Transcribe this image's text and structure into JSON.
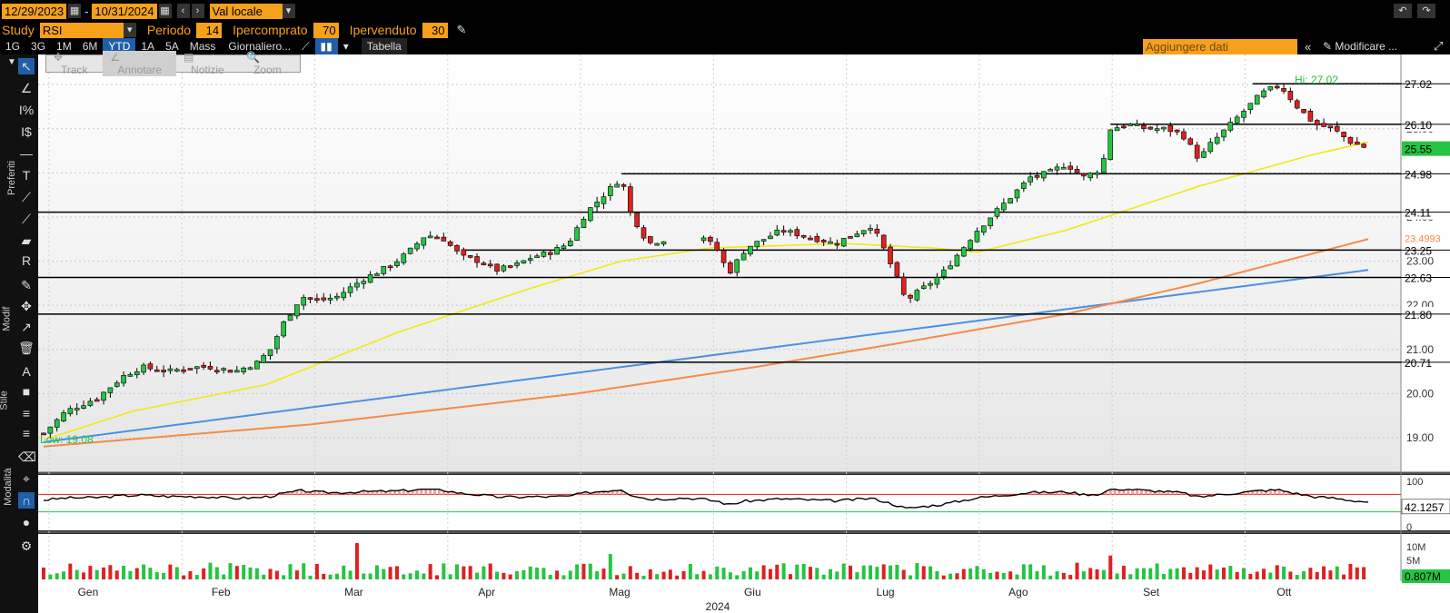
{
  "header": {
    "date_from": "12/29/2023",
    "date_sep": "-",
    "date_to": "10/31/2024",
    "currency": "Val locale",
    "study_label": "Study",
    "study_value": "RSI",
    "period_label": "Periodo",
    "period_value": "14",
    "overbought_label": "Ipercomprato",
    "overbought_value": "70",
    "oversold_label": "Ipervenduto",
    "oversold_value": "30"
  },
  "toolbar": {
    "timeframes": [
      "1G",
      "3G",
      "1M",
      "6M",
      "YTD",
      "1A",
      "5A",
      "Mass"
    ],
    "active_timeframe": "YTD",
    "frequency": "Giornaliero...",
    "table_label": "Tabella",
    "add_data_placeholder": "Aggiungere dati",
    "edit_label": "Modificare ..."
  },
  "drawtools": {
    "track": "Track",
    "annotate": "Annotare",
    "news": "Notizie",
    "zoom": "Zoom"
  },
  "sidebar": {
    "fav_label": "Preferiti",
    "edit_label": "Modif",
    "style_label": "Stile",
    "mode_label": "Modalità"
  },
  "colors": {
    "up": "#26c442",
    "down": "#e02020",
    "ma_short": "#f5e614",
    "ma_long": "#f58a4a",
    "trend": "#4a90e2",
    "accent": "#f7a11a",
    "rsi_line": "#000000",
    "rsi_over": "#e02020",
    "rsi_under": "#26c442"
  },
  "chart_data": {
    "type": "candlestick",
    "x_months": [
      "Gen",
      "Feb",
      "Mar",
      "Apr",
      "Mag",
      "Giu",
      "Lug",
      "Ago",
      "Set",
      "Ott"
    ],
    "year_label": "2024",
    "y_ticks": [
      19.0,
      20.0,
      21.0,
      22.0,
      23.0,
      24.0,
      25.0,
      26.0,
      27.0
    ],
    "hi_label": "Hi: 27.02",
    "low_label": "Low: 19.08",
    "hi": 27.02,
    "low": 19.08,
    "horizontal_levels": [
      "27.02",
      "26.10",
      "24.98",
      "24.11",
      "23.25",
      "22.63",
      "21.80",
      "20.71"
    ],
    "axis_badges": {
      "last_price": "25.55",
      "ma_long_value": "23.4993"
    },
    "close_path": [
      [
        0,
        19.1
      ],
      [
        5,
        19.6
      ],
      [
        12,
        19.9
      ],
      [
        18,
        20.4
      ],
      [
        22,
        20.6
      ],
      [
        28,
        20.5
      ],
      [
        33,
        20.6
      ],
      [
        38,
        20.6
      ],
      [
        43,
        20.5
      ],
      [
        48,
        20.7
      ],
      [
        51,
        21.0
      ],
      [
        54,
        21.6
      ],
      [
        58,
        22.2
      ],
      [
        62,
        22.1
      ],
      [
        66,
        22.2
      ],
      [
        72,
        22.6
      ],
      [
        78,
        22.9
      ],
      [
        82,
        23.2
      ],
      [
        86,
        23.6
      ],
      [
        90,
        23.5
      ],
      [
        94,
        23.1
      ],
      [
        98,
        23.0
      ],
      [
        102,
        22.8
      ],
      [
        106,
        22.9
      ],
      [
        110,
        23.1
      ],
      [
        114,
        23.2
      ],
      [
        118,
        23.4
      ],
      [
        122,
        24.1
      ],
      [
        126,
        24.5
      ],
      [
        130,
        24.9
      ],
      [
        132,
        24.1
      ],
      [
        136,
        23.4
      ],
      [
        140,
        23.5
      ],
      [
        144,
        23.7
      ],
      [
        148,
        23.6
      ],
      [
        152,
        23.2
      ],
      [
        154,
        22.7
      ],
      [
        158,
        23.3
      ],
      [
        162,
        23.5
      ],
      [
        166,
        23.7
      ],
      [
        170,
        23.6
      ],
      [
        174,
        23.5
      ],
      [
        178,
        23.4
      ],
      [
        182,
        23.6
      ],
      [
        186,
        23.8
      ],
      [
        188,
        23.5
      ],
      [
        192,
        22.6
      ],
      [
        194,
        22.1
      ],
      [
        198,
        22.4
      ],
      [
        202,
        22.7
      ],
      [
        206,
        23.2
      ],
      [
        210,
        23.7
      ],
      [
        214,
        24.1
      ],
      [
        218,
        24.5
      ],
      [
        222,
        24.9
      ],
      [
        226,
        25.0
      ],
      [
        230,
        25.2
      ],
      [
        234,
        24.9
      ],
      [
        238,
        25.1
      ],
      [
        240,
        26.0
      ],
      [
        244,
        26.1
      ],
      [
        248,
        26.0
      ],
      [
        252,
        26.0
      ],
      [
        256,
        25.9
      ],
      [
        260,
        25.3
      ],
      [
        262,
        25.6
      ],
      [
        266,
        26.0
      ],
      [
        270,
        26.4
      ],
      [
        274,
        26.8
      ],
      [
        278,
        27.0
      ],
      [
        282,
        26.5
      ],
      [
        286,
        26.1
      ],
      [
        290,
        26.0
      ],
      [
        294,
        25.7
      ],
      [
        298,
        25.55
      ]
    ],
    "ma_short_path": [
      [
        0,
        18.95
      ],
      [
        20,
        19.6
      ],
      [
        50,
        20.2
      ],
      [
        80,
        21.4
      ],
      [
        110,
        22.4
      ],
      [
        130,
        23.0
      ],
      [
        150,
        23.3
      ],
      [
        180,
        23.4
      ],
      [
        200,
        23.3
      ],
      [
        210,
        23.2
      ],
      [
        230,
        23.7
      ],
      [
        260,
        24.7
      ],
      [
        285,
        25.4
      ],
      [
        298,
        25.7
      ]
    ],
    "ma_long_path": [
      [
        0,
        18.8
      ],
      [
        60,
        19.3
      ],
      [
        120,
        20.0
      ],
      [
        160,
        20.6
      ],
      [
        190,
        21.1
      ],
      [
        230,
        21.8
      ],
      [
        260,
        22.5
      ],
      [
        298,
        23.5
      ]
    ],
    "trend_path": [
      [
        0,
        18.9
      ],
      [
        298,
        22.8
      ]
    ],
    "rsi_last": "42.1257",
    "rsi_ticks": [
      "100",
      "0"
    ],
    "volume_last": "0.807M",
    "volume_ticks": [
      "10M",
      "5M"
    ]
  }
}
